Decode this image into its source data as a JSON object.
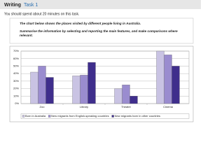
{
  "header": {
    "title_main": "Writing",
    "title_task": "Task 1"
  },
  "instruction": "You should spend about 20 minutes on this task.",
  "prompt": {
    "line1": "The chart below shows the places visited by different people living in Australia.",
    "line2": "Summarise the information by selecting and reporting the main features, and make comparisons where relevant."
  },
  "chart_data": {
    "type": "bar",
    "categories": [
      "Zoo",
      "Library",
      "Theatre",
      "Cinema"
    ],
    "series": [
      {
        "name": "Born in Australia",
        "color": "#c9c3e3",
        "values": [
          42,
          37,
          20,
          70
        ]
      },
      {
        "name": "New migrants from English-speaking countries",
        "color": "#9a8ccf",
        "values": [
          50,
          38,
          25,
          65
        ]
      },
      {
        "name": "New migrants born in other countries",
        "color": "#3f2e8c",
        "values": [
          35,
          55,
          10,
          50
        ]
      }
    ],
    "ylim": [
      0,
      70
    ],
    "yticks": [
      {
        "value": 0,
        "label": "0%"
      },
      {
        "value": 10,
        "label": "10%"
      },
      {
        "value": 20,
        "label": "20%"
      },
      {
        "value": 30,
        "label": "30%"
      },
      {
        "value": 40,
        "label": "40%"
      },
      {
        "value": 50,
        "label": "50%"
      },
      {
        "value": 60,
        "label": "60%"
      },
      {
        "value": 70,
        "label": "70%"
      }
    ],
    "grid": true,
    "legend": "bottom"
  }
}
